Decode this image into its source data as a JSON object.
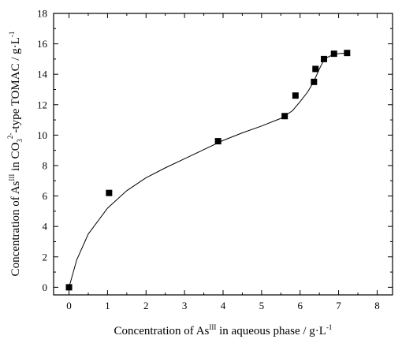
{
  "chart_data": {
    "type": "scatter",
    "xlabel": "Concentration of As",
    "xlabel_sup": "III",
    "xlabel_tail": " in aqueous phase / g·L",
    "xlabel_unit_sup": "-1",
    "ylabel": "Concentration of As",
    "ylabel_sup": "III",
    "ylabel_mid": " in CO",
    "ylabel_sub": "3",
    "ylabel_sup2": "2-",
    "ylabel_tail": "-type TOMAC / g·L",
    "ylabel_unit_sup": "-1",
    "xlim": [
      -0.4,
      8.4
    ],
    "ylim": [
      -0.5,
      18
    ],
    "xticks": [
      "0",
      "1",
      "2",
      "3",
      "4",
      "5",
      "6",
      "7",
      "8"
    ],
    "yticks": [
      "0",
      "2",
      "4",
      "6",
      "8",
      "10",
      "12",
      "14",
      "16",
      "18"
    ],
    "series": [
      {
        "marker": "square",
        "x": [
          0,
          1.04,
          3.87,
          5.6,
          5.88,
          6.36,
          6.4,
          6.62,
          6.88,
          7.22
        ],
        "y": [
          0,
          6.2,
          9.6,
          11.25,
          12.6,
          13.5,
          14.35,
          15.0,
          15.35,
          15.4
        ]
      }
    ],
    "fit_curve": {
      "x": [
        0,
        0.2,
        0.5,
        1.0,
        1.5,
        2.0,
        2.5,
        3.0,
        3.5,
        4.0,
        4.5,
        5.0,
        5.5,
        5.8,
        6.0,
        6.2,
        6.35,
        6.5,
        6.6,
        6.7,
        6.85,
        7.0,
        7.22
      ],
      "y": [
        0,
        1.8,
        3.5,
        5.2,
        6.35,
        7.2,
        7.85,
        8.45,
        9.05,
        9.65,
        10.15,
        10.6,
        11.1,
        11.6,
        12.2,
        12.85,
        13.5,
        14.35,
        14.85,
        15.1,
        15.28,
        15.36,
        15.4
      ]
    },
    "color": "#000000"
  }
}
